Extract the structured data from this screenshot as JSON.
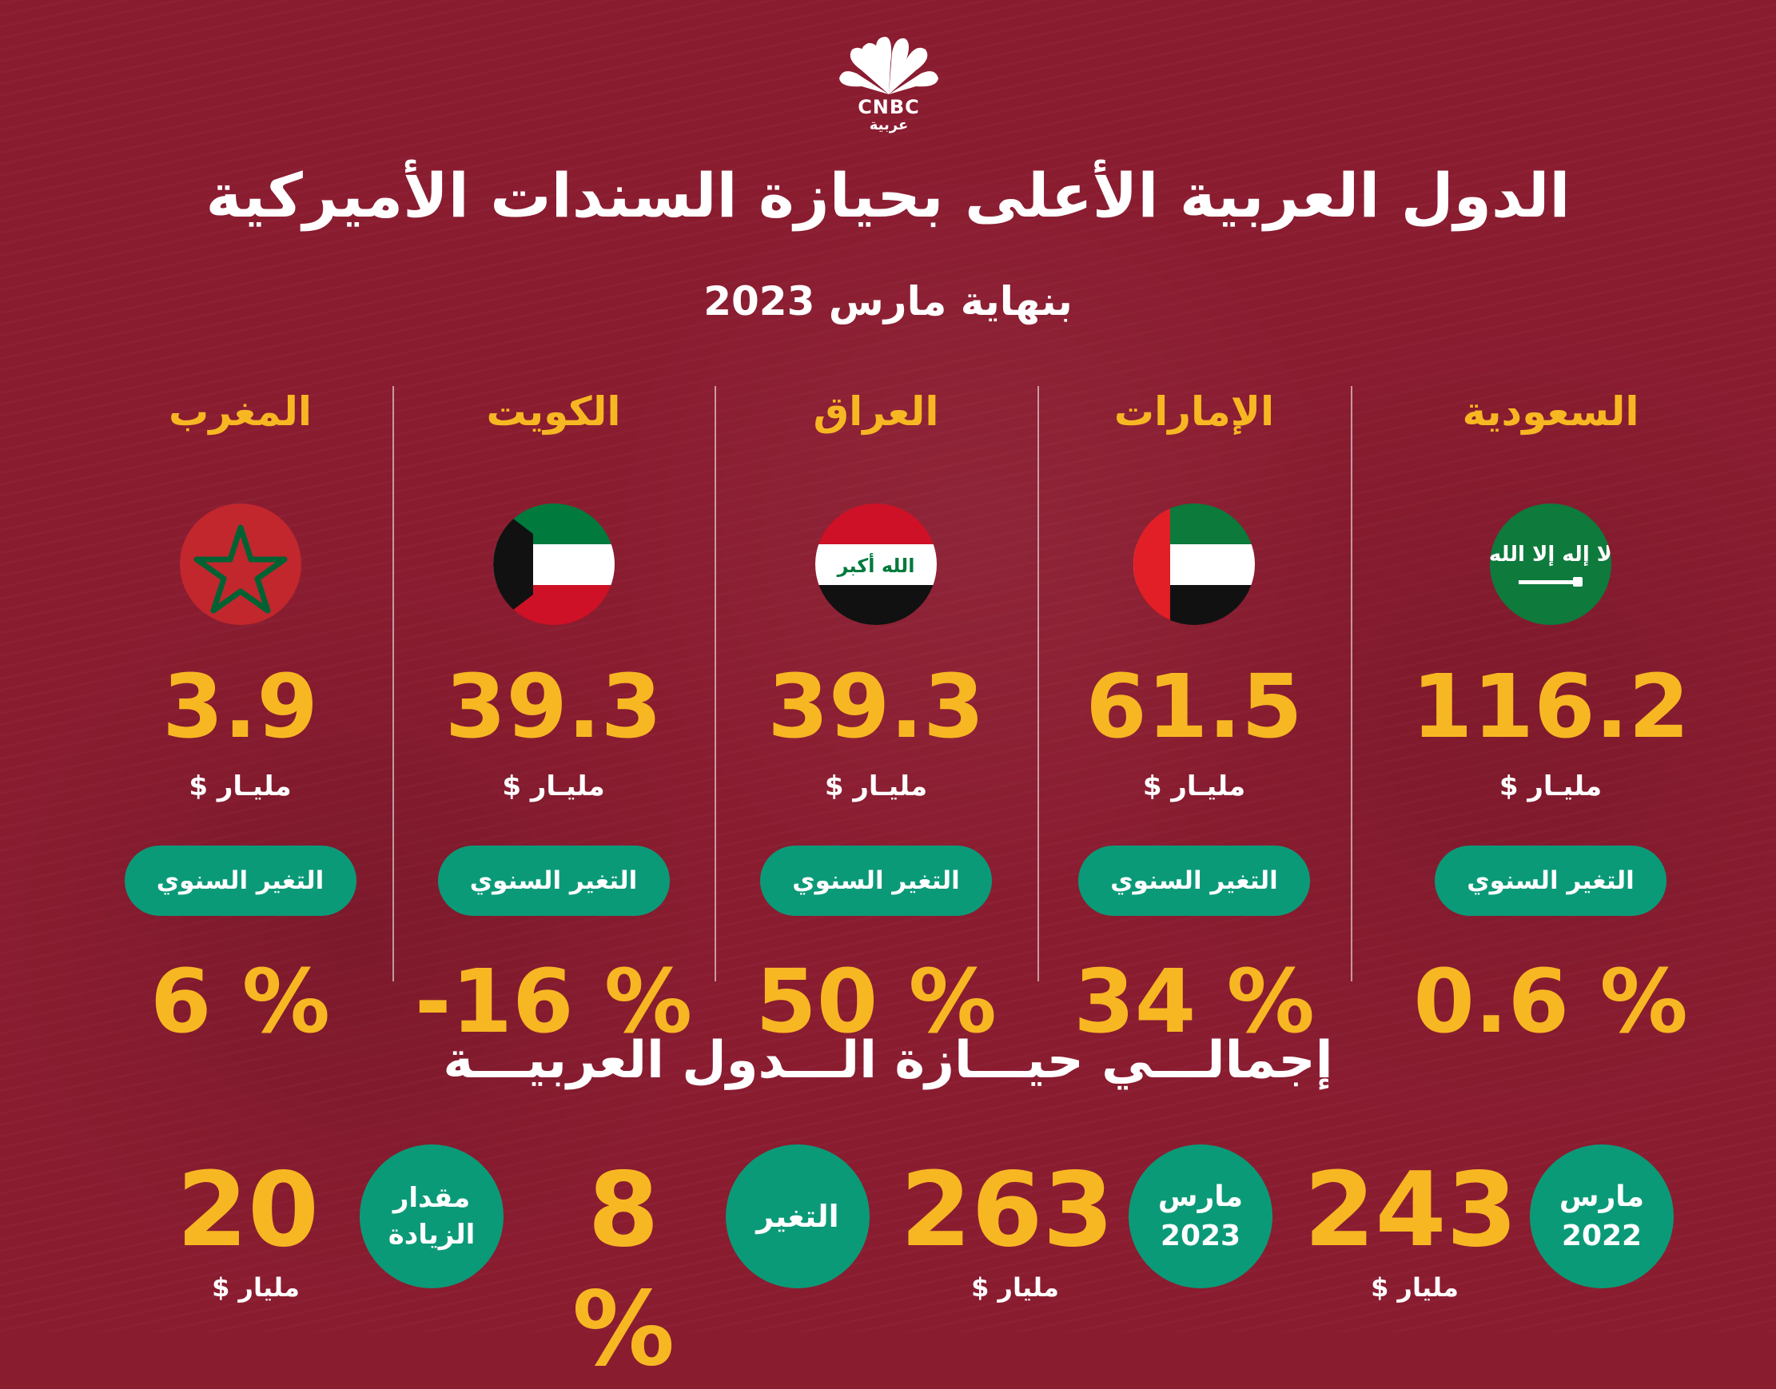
{
  "brand": {
    "name": "CNBC",
    "sub": "عربية"
  },
  "title": "الدول العربية الأعلى بحيازة السندات الأميركية",
  "subtitle": "بنهاية مارس 2023",
  "columns": [
    {
      "country": "السعودية",
      "flag": "saudi-flag",
      "amount": "116.2",
      "unit": "مليـار $",
      "change_label": "التغير السنوي",
      "change": "0.6 %"
    },
    {
      "country": "الإمارات",
      "flag": "uae-flag",
      "amount": "61.5",
      "unit": "مليـار $",
      "change_label": "التغير السنوي",
      "change": "34 %"
    },
    {
      "country": "العراق",
      "flag": "iraq-flag",
      "amount": "39.3",
      "unit": "مليـار $",
      "change_label": "التغير السنوي",
      "change": "50 %"
    },
    {
      "country": "الكويت",
      "flag": "kuwait-flag",
      "amount": "39.3",
      "unit": "مليـار $",
      "change_label": "التغير السنوي",
      "change": "-16 %"
    },
    {
      "country": "المغرب",
      "flag": "morocco-flag",
      "amount": "3.9",
      "unit": "مليـار $",
      "change_label": "التغير السنوي",
      "change": "6 %"
    }
  ],
  "total": {
    "title": "إجمالـــي حيـــازة الـــدول العربيـــة",
    "march_2022_label_1": "مارس",
    "march_2022_label_2": "2022",
    "march_2022_value": "243",
    "march_2022_unit": "مليار $",
    "march_2023_label_1": "مارس",
    "march_2023_label_2": "2023",
    "march_2023_value": "263",
    "march_2023_unit": "مليار $",
    "change_label": "التغير",
    "change_value": "8 %",
    "increase_label_1": "مقدار",
    "increase_label_2": "الزيادة",
    "increase_value": "20",
    "increase_unit": "مليار $"
  },
  "colors": {
    "background": "#8a1c30",
    "accent": "#f7b723",
    "pill": "#0b9a78"
  }
}
